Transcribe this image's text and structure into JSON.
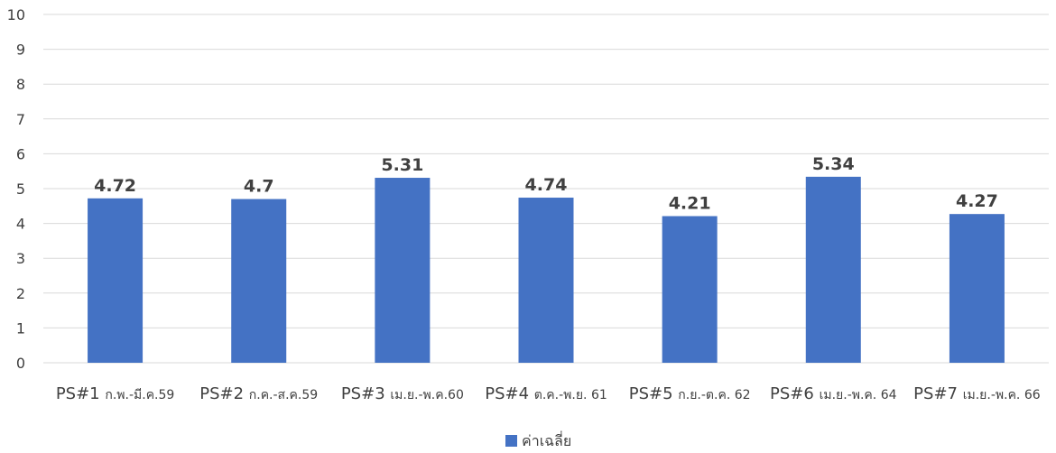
{
  "chart_data": {
    "type": "bar",
    "categories": [
      {
        "code": "PS#1",
        "period": "ก.พ.-มี.ค.59"
      },
      {
        "code": "PS#2",
        "period": "ก.ค.-ส.ค.59"
      },
      {
        "code": "PS#3",
        "period": "เม.ย.-พ.ค.60"
      },
      {
        "code": "PS#4",
        "period": "ต.ค.-พ.ย. 61"
      },
      {
        "code": "PS#5",
        "period": "ก.ย.-ต.ค. 62"
      },
      {
        "code": "PS#6",
        "period": "เม.ย.-พ.ค. 64"
      },
      {
        "code": "PS#7",
        "period": "เม.ย.-พ.ค. 66"
      }
    ],
    "series": [
      {
        "name": "ค่าเฉลี่ย",
        "values": [
          4.72,
          4.7,
          5.31,
          4.74,
          4.21,
          5.34,
          4.27
        ],
        "color": "#4472c4"
      }
    ],
    "data_labels": [
      "4.72",
      "4.7",
      "5.31",
      "4.74",
      "4.21",
      "5.34",
      "4.27"
    ],
    "ylim": [
      0,
      10
    ],
    "yticks": [
      0,
      1,
      2,
      3,
      4,
      5,
      6,
      7,
      8,
      9,
      10
    ],
    "grid": true,
    "legend_position": "bottom",
    "colors": {
      "bar": "#4472c4",
      "grid": "#d9d9d9",
      "text": "#404040"
    }
  }
}
